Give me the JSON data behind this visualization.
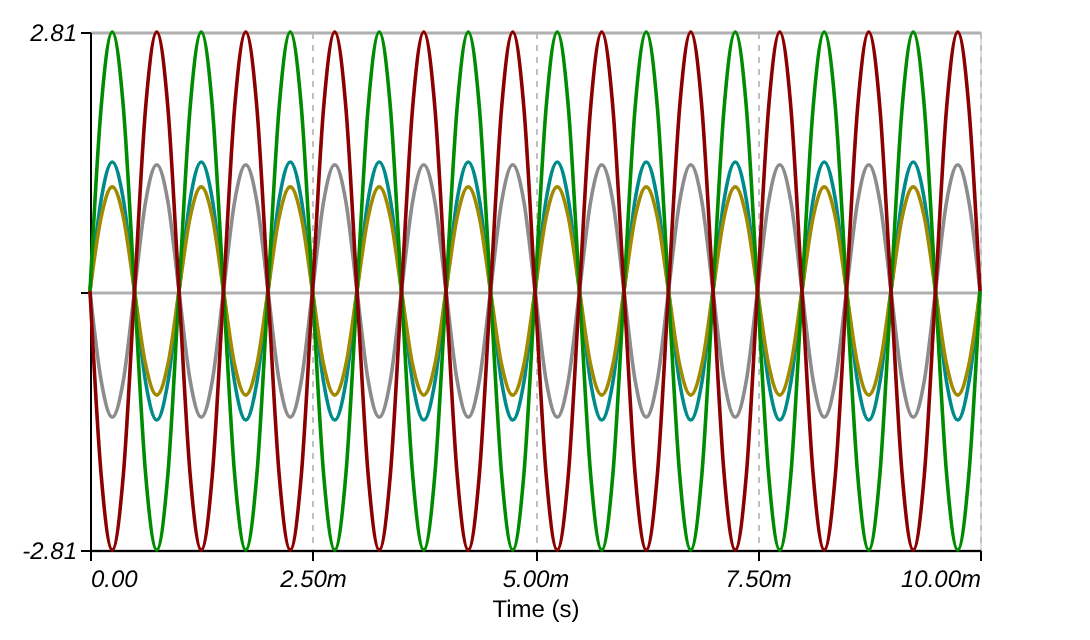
{
  "chart_data": {
    "type": "line",
    "xlabel": "Time (s)",
    "x": [
      0,
      0.125,
      0.25,
      0.375,
      0.5,
      0.625,
      0.75,
      0.875,
      1,
      1.125,
      1.25,
      1.375,
      1.5,
      1.625,
      1.75,
      1.875,
      2,
      2.125,
      2.25,
      2.375,
      2.5,
      2.625,
      2.75,
      2.875,
      3,
      3.125,
      3.25,
      3.375,
      3.5,
      3.625,
      3.75,
      3.875,
      4,
      4.125,
      4.25,
      4.375,
      4.5,
      4.625,
      4.75,
      4.875,
      5,
      5.125,
      5.25,
      5.375,
      5.5,
      5.625,
      5.75,
      5.875,
      6,
      6.125,
      6.25,
      6.375,
      6.5,
      6.625,
      6.75,
      6.875,
      7,
      7.125,
      7.25,
      7.375,
      7.5,
      7.625,
      7.75,
      7.875,
      8,
      8.125,
      8.25,
      8.375,
      8.5,
      8.625,
      8.75,
      8.875,
      9,
      9.125,
      9.25,
      9.375,
      9.5,
      9.625,
      9.75,
      9.875,
      10
    ],
    "series": [
      {
        "color": "#008b8b",
        "values": [
          0,
          0.99,
          1.4,
          0.99,
          0,
          -0.99,
          -1.4,
          -0.99,
          0,
          0.99,
          1.4,
          0.99,
          0,
          -0.99,
          -1.4,
          -0.99,
          0,
          0.99,
          1.4,
          0.99,
          0,
          -0.99,
          -1.4,
          -0.99,
          0,
          0.99,
          1.4,
          0.99,
          0,
          -0.99,
          -1.4,
          -0.99,
          0,
          0.99,
          1.4,
          0.99,
          0,
          -0.99,
          -1.4,
          -0.99,
          0,
          0.99,
          1.4,
          0.99,
          0,
          -0.99,
          -1.4,
          -0.99,
          0,
          0.99,
          1.4,
          0.99,
          0,
          -0.99,
          -1.4,
          -0.99,
          0,
          0.99,
          1.4,
          0.99,
          0,
          -0.99,
          -1.4,
          -0.99,
          0,
          0.99,
          1.4,
          0.99,
          0,
          -0.99,
          -1.4,
          -0.99,
          0,
          0.99,
          1.4,
          0.99,
          0,
          -0.99,
          -1.4,
          -0.99,
          0
        ]
      },
      {
        "color": "#8c8c8c",
        "values": [
          0,
          -0.97,
          -1.37,
          -0.97,
          0,
          0.97,
          1.37,
          0.97,
          0,
          -0.97,
          -1.37,
          -0.97,
          0,
          0.97,
          1.37,
          0.97,
          0,
          -0.97,
          -1.37,
          -0.97,
          0,
          0.97,
          1.37,
          0.97,
          0,
          -0.97,
          -1.37,
          -0.97,
          0,
          0.97,
          1.37,
          0.97,
          0,
          -0.97,
          -1.37,
          -0.97,
          0,
          0.97,
          1.37,
          0.97,
          0,
          -0.97,
          -1.37,
          -0.97,
          0,
          0.97,
          1.37,
          0.97,
          0,
          -0.97,
          -1.37,
          -0.97,
          0,
          0.97,
          1.37,
          0.97,
          0,
          -0.97,
          -1.37,
          -0.97,
          0,
          0.97,
          1.37,
          0.97,
          0,
          -0.97,
          -1.37,
          -0.97,
          0,
          0.97,
          1.37,
          0.97,
          0,
          -0.97,
          -1.37,
          -0.97,
          0,
          0.97,
          1.37,
          0.97,
          0
        ]
      },
      {
        "color": "#a08a00",
        "values": [
          0,
          0.8,
          1.13,
          0.8,
          0,
          -0.8,
          -1.13,
          -0.8,
          0,
          0.8,
          1.13,
          0.8,
          0,
          -0.8,
          -1.13,
          -0.8,
          0,
          0.8,
          1.13,
          0.8,
          0,
          -0.8,
          -1.13,
          -0.8,
          0,
          0.8,
          1.13,
          0.8,
          0,
          -0.8,
          -1.13,
          -0.8,
          0,
          0.8,
          1.13,
          0.8,
          0,
          -0.8,
          -1.13,
          -0.8,
          0,
          0.8,
          1.13,
          0.8,
          0,
          -0.8,
          -1.13,
          -0.8,
          0,
          0.8,
          1.13,
          0.8,
          0,
          -0.8,
          -1.13,
          -0.8,
          0,
          0.8,
          1.13,
          0.8,
          0,
          -0.8,
          -1.13,
          -0.8,
          0,
          0.8,
          1.13,
          0.8,
          0,
          -0.8,
          -1.13,
          -0.8,
          0,
          0.8,
          1.13,
          0.8,
          0,
          -0.8,
          -1.13,
          -0.8,
          0
        ]
      },
      {
        "color": "#008c00",
        "values": [
          0,
          1.99,
          2.81,
          1.99,
          0,
          -1.99,
          -2.81,
          -1.99,
          0,
          1.99,
          2.81,
          1.99,
          0,
          -1.99,
          -2.81,
          -1.99,
          0,
          1.99,
          2.81,
          1.99,
          0,
          -1.99,
          -2.81,
          -1.99,
          0,
          1.99,
          2.81,
          1.99,
          0,
          -1.99,
          -2.81,
          -1.99,
          0,
          1.99,
          2.81,
          1.99,
          0,
          -1.99,
          -2.81,
          -1.99,
          0,
          1.99,
          2.81,
          1.99,
          0,
          -1.99,
          -2.81,
          -1.99,
          0,
          1.99,
          2.81,
          1.99,
          0,
          -1.99,
          -2.81,
          -1.99,
          0,
          1.99,
          2.81,
          1.99,
          0,
          -1.99,
          -2.81,
          -1.99,
          0,
          1.99,
          2.81,
          1.99,
          0,
          -1.99,
          -2.81,
          -1.99,
          0,
          1.99,
          2.81,
          1.99,
          0,
          -1.99,
          -2.81,
          -1.99,
          0
        ]
      },
      {
        "color": "#8b0000",
        "values": [
          0,
          -1.99,
          -2.81,
          -1.99,
          0,
          1.99,
          2.81,
          1.99,
          0,
          -1.99,
          -2.81,
          -1.99,
          0,
          1.99,
          2.81,
          1.99,
          0,
          -1.99,
          -2.81,
          -1.99,
          0,
          1.99,
          2.81,
          1.99,
          0,
          -1.99,
          -2.81,
          -1.99,
          0,
          1.99,
          2.81,
          1.99,
          0,
          -1.99,
          -2.81,
          -1.99,
          0,
          1.99,
          2.81,
          1.99,
          0,
          -1.99,
          -2.81,
          -1.99,
          0,
          1.99,
          2.81,
          1.99,
          0,
          -1.99,
          -2.81,
          -1.99,
          0,
          1.99,
          2.81,
          1.99,
          0,
          -1.99,
          -2.81,
          -1.99,
          0,
          1.99,
          2.81,
          1.99,
          0,
          -1.99,
          -2.81,
          -1.99,
          0,
          1.99,
          2.81,
          1.99,
          0,
          -1.99,
          -2.81,
          -1.99,
          0,
          1.99,
          2.81,
          1.99,
          0
        ]
      }
    ],
    "xlim": [
      0,
      10
    ],
    "xticks": [
      {
        "value": 0,
        "label": "0.00"
      },
      {
        "value": 2.5,
        "label": "2.50m"
      },
      {
        "value": 5,
        "label": "5.00m"
      },
      {
        "value": 7.5,
        "label": "7.50m"
      },
      {
        "value": 10,
        "label": "10.00m"
      }
    ],
    "ylim": [
      -2.81,
      2.81
    ],
    "yticks": [
      -2.81,
      {
        "value": 0,
        "label": null
      },
      2.81
    ],
    "grid": true,
    "marker": "none",
    "line_style": "solid"
  }
}
